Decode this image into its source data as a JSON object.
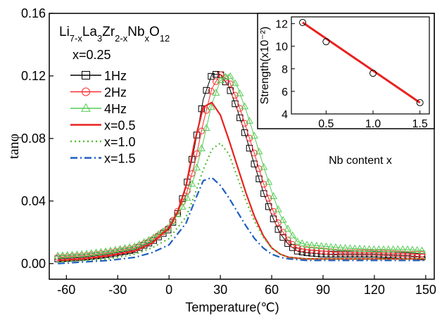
{
  "chart_data": [
    {
      "type": "line",
      "xlabel": "Temperature(℃)",
      "ylabel": "tanφ",
      "composition": {
        "base": "Li",
        "sub1": "7-x",
        "el2": "La",
        "sub2": "3",
        "el3": "Zr",
        "sub3": "2-x",
        "el4": "Nb",
        "sub4": "x",
        "el5": "O",
        "sub5": "12"
      },
      "xlim": [
        -70,
        155
      ],
      "ylim": [
        -0.01,
        0.16
      ],
      "xticks": [
        "-60",
        "-30",
        "0",
        "30",
        "60",
        "90",
        "120",
        "150"
      ],
      "yticks": [
        "0.00",
        "0.04",
        "0.08",
        "0.12",
        "0.16"
      ],
      "legend_placement": "top-left",
      "legend_header": "x=0.25",
      "series": [
        {
          "name": "1Hz",
          "color": "#000000",
          "marker": "square",
          "x": [
            -65,
            -50,
            -35,
            -20,
            -10,
            0,
            5,
            10,
            15,
            20,
            25,
            30,
            35,
            40,
            45,
            50,
            55,
            60,
            65,
            70,
            75,
            80,
            90,
            100,
            120,
            140,
            150
          ],
          "y": [
            0.003,
            0.004,
            0.006,
            0.009,
            0.014,
            0.022,
            0.032,
            0.049,
            0.075,
            0.105,
            0.121,
            0.121,
            0.113,
            0.098,
            0.081,
            0.063,
            0.046,
            0.031,
            0.019,
            0.012,
            0.008,
            0.007,
            0.006,
            0.006,
            0.006,
            0.005,
            0.004
          ]
        },
        {
          "name": "2Hz",
          "color": "#ff2b2b",
          "marker": "circle",
          "x": [
            -65,
            -50,
            -35,
            -20,
            -10,
            0,
            10,
            15,
            20,
            25,
            30,
            35,
            40,
            45,
            50,
            55,
            60,
            65,
            70,
            75,
            80,
            90,
            100,
            120,
            140,
            150
          ],
          "y": [
            0.004,
            0.005,
            0.007,
            0.01,
            0.015,
            0.023,
            0.044,
            0.064,
            0.09,
            0.112,
            0.121,
            0.117,
            0.104,
            0.087,
            0.07,
            0.052,
            0.036,
            0.023,
            0.014,
            0.01,
            0.009,
            0.008,
            0.007,
            0.007,
            0.006,
            0.006
          ]
        },
        {
          "name": "4Hz",
          "color": "#55cc55",
          "marker": "triangle",
          "x": [
            -65,
            -50,
            -35,
            -20,
            -10,
            0,
            10,
            15,
            20,
            25,
            30,
            35,
            40,
            45,
            50,
            55,
            60,
            65,
            70,
            75,
            80,
            90,
            100,
            120,
            140,
            150
          ],
          "y": [
            0.005,
            0.006,
            0.008,
            0.011,
            0.016,
            0.023,
            0.04,
            0.056,
            0.078,
            0.102,
            0.117,
            0.121,
            0.113,
            0.098,
            0.081,
            0.063,
            0.046,
            0.031,
            0.021,
            0.014,
            0.012,
            0.011,
            0.01,
            0.009,
            0.009,
            0.008
          ]
        },
        {
          "name": "x=0.5",
          "color": "#e8221f",
          "style": "solid",
          "x": [
            -65,
            -50,
            -35,
            -20,
            -10,
            0,
            5,
            10,
            15,
            20,
            25,
            30,
            35,
            40,
            45,
            50,
            55,
            60,
            65,
            70,
            80,
            90,
            120,
            150
          ],
          "y": [
            0.002,
            0.003,
            0.005,
            0.008,
            0.013,
            0.023,
            0.033,
            0.05,
            0.078,
            0.1,
            0.103,
            0.095,
            0.079,
            0.062,
            0.045,
            0.03,
            0.018,
            0.01,
            0.006,
            0.004,
            0.003,
            0.003,
            0.003,
            0.003
          ]
        },
        {
          "name": "x=1.0",
          "color": "#55bb33",
          "style": "dotted",
          "x": [
            -65,
            -50,
            -35,
            -20,
            -10,
            0,
            10,
            15,
            20,
            25,
            30,
            35,
            40,
            45,
            50,
            55,
            60,
            65,
            70,
            80,
            90,
            120,
            150
          ],
          "y": [
            0.001,
            0.002,
            0.003,
            0.006,
            0.01,
            0.016,
            0.03,
            0.044,
            0.06,
            0.073,
            0.077,
            0.07,
            0.055,
            0.04,
            0.027,
            0.017,
            0.01,
            0.006,
            0.004,
            0.003,
            0.003,
            0.003,
            0.003
          ]
        },
        {
          "name": "x=1.5",
          "color": "#1f5fbf",
          "style": "dashdot",
          "x": [
            -65,
            -50,
            -35,
            -20,
            -10,
            0,
            10,
            15,
            20,
            25,
            30,
            35,
            40,
            45,
            50,
            55,
            60,
            65,
            70,
            80,
            90,
            120,
            150
          ],
          "y": [
            0.0,
            0.001,
            0.002,
            0.004,
            0.007,
            0.012,
            0.026,
            0.04,
            0.053,
            0.055,
            0.05,
            0.042,
            0.033,
            0.024,
            0.016,
            0.01,
            0.006,
            0.004,
            0.003,
            0.002,
            0.002,
            0.002,
            0.002
          ]
        }
      ]
    },
    {
      "type": "scatter",
      "placement": "inset top-right",
      "xlabel": "Nb content x",
      "ylabel": "Strength(x10⁻²)",
      "xlim": [
        0.13,
        1.6
      ],
      "ylim": [
        4,
        12.6
      ],
      "xticks": [
        "0.5",
        "1.0",
        "1.5"
      ],
      "yticks": [
        "4",
        "6",
        "8",
        "10",
        "12"
      ],
      "points": {
        "x": [
          0.25,
          0.5,
          1.0,
          1.5
        ],
        "y": [
          12.1,
          10.4,
          7.6,
          5.0
        ]
      },
      "fit_color": "#e8221f"
    }
  ]
}
